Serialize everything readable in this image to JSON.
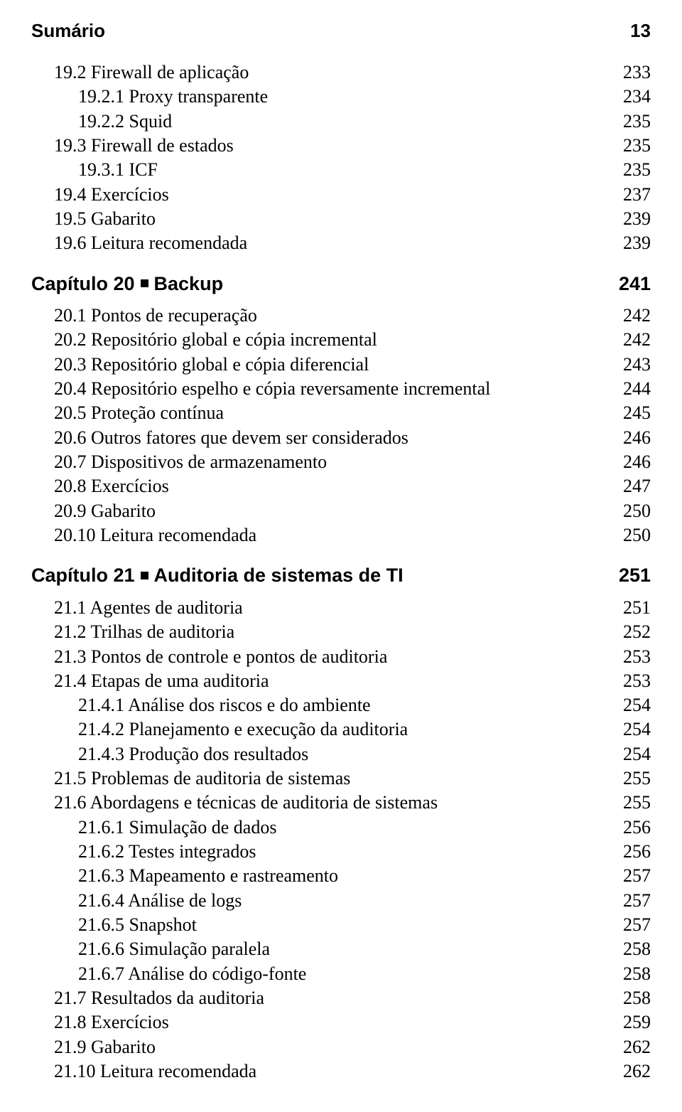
{
  "header": {
    "title": "Sumário",
    "page_number": "13"
  },
  "sections": [
    {
      "type": "entry",
      "entries": [
        {
          "label": "19.2 Firewall de aplicação",
          "page": "233",
          "indent": 0
        },
        {
          "label": "19.2.1 Proxy transparente",
          "page": "234",
          "indent": 1
        },
        {
          "label": "19.2.2 Squid",
          "page": "235",
          "indent": 1
        },
        {
          "label": "19.3 Firewall de estados",
          "page": "235",
          "indent": 0
        },
        {
          "label": "19.3.1 ICF",
          "page": "235",
          "indent": 1
        },
        {
          "label": "19.4 Exercícios",
          "page": "237",
          "indent": 0
        },
        {
          "label": "19.5 Gabarito",
          "page": "239",
          "indent": 0
        },
        {
          "label": "19.6 Leitura recomendada",
          "page": "239",
          "indent": 0
        }
      ]
    },
    {
      "type": "chapter",
      "prefix": "Capítulo 20",
      "title": "Backup",
      "page": "241",
      "entries": [
        {
          "label": "20.1 Pontos de recuperação",
          "page": "242",
          "indent": 0
        },
        {
          "label": "20.2 Repositório global e cópia incremental",
          "page": "242",
          "indent": 0
        },
        {
          "label": "20.3 Repositório global e cópia diferencial",
          "page": "243",
          "indent": 0
        },
        {
          "label": "20.4 Repositório espelho e cópia reversamente incremental",
          "page": "244",
          "indent": 0
        },
        {
          "label": "20.5 Proteção contínua",
          "page": "245",
          "indent": 0
        },
        {
          "label": "20.6 Outros fatores que devem ser considerados",
          "page": "246",
          "indent": 0
        },
        {
          "label": "20.7 Dispositivos de armazenamento",
          "page": "246",
          "indent": 0
        },
        {
          "label": "20.8 Exercícios",
          "page": "247",
          "indent": 0
        },
        {
          "label": "20.9 Gabarito",
          "page": "250",
          "indent": 0
        },
        {
          "label": "20.10 Leitura recomendada",
          "page": "250",
          "indent": 0
        }
      ]
    },
    {
      "type": "chapter",
      "prefix": "Capítulo 21",
      "title": "Auditoria de sistemas de TI",
      "page": "251",
      "entries": [
        {
          "label": "21.1 Agentes de auditoria",
          "page": "251",
          "indent": 0
        },
        {
          "label": "21.2 Trilhas de auditoria",
          "page": "252",
          "indent": 0
        },
        {
          "label": "21.3 Pontos de controle e pontos de auditoria",
          "page": "253",
          "indent": 0
        },
        {
          "label": "21.4 Etapas de uma auditoria",
          "page": "253",
          "indent": 0
        },
        {
          "label": "21.4.1 Análise dos riscos e do ambiente",
          "page": "254",
          "indent": 1
        },
        {
          "label": "21.4.2 Planejamento e execução da auditoria",
          "page": "254",
          "indent": 1
        },
        {
          "label": "21.4.3 Produção dos resultados",
          "page": "254",
          "indent": 1
        },
        {
          "label": "21.5 Problemas de auditoria de sistemas",
          "page": "255",
          "indent": 0
        },
        {
          "label": "21.6 Abordagens e técnicas de auditoria de sistemas",
          "page": "255",
          "indent": 0
        },
        {
          "label": "21.6.1 Simulação de dados",
          "page": "256",
          "indent": 1
        },
        {
          "label": "21.6.2 Testes integrados",
          "page": "256",
          "indent": 1
        },
        {
          "label": "21.6.3 Mapeamento e rastreamento",
          "page": "257",
          "indent": 1
        },
        {
          "label": "21.6.4 Análise de logs",
          "page": "257",
          "indent": 1
        },
        {
          "label": "21.6.5 Snapshot",
          "page": "257",
          "indent": 1
        },
        {
          "label": "21.6.6 Simulação paralela",
          "page": "258",
          "indent": 1
        },
        {
          "label": "21.6.7 Análise do código-fonte",
          "page": "258",
          "indent": 1
        },
        {
          "label": "21.7 Resultados da auditoria",
          "page": "258",
          "indent": 0
        },
        {
          "label": "21.8 Exercícios",
          "page": "259",
          "indent": 0
        },
        {
          "label": "21.9 Gabarito",
          "page": "262",
          "indent": 0
        },
        {
          "label": "21.10 Leitura recomendada",
          "page": "262",
          "indent": 0
        }
      ]
    }
  ]
}
